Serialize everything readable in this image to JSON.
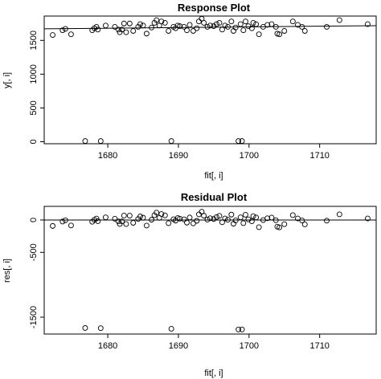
{
  "chart_data": [
    {
      "type": "scatter",
      "title": "Response Plot",
      "xlabel": "fit[, i]",
      "ylabel": "y[, i]",
      "xlim": [
        1671,
        1718
      ],
      "ylim": [
        -30,
        1860
      ],
      "xticks": [
        1680,
        1690,
        1700,
        1710
      ],
      "yticks": [
        0,
        500,
        1000,
        1500
      ],
      "grid": false,
      "reference_line": {
        "kind": "identity",
        "description": "y = x"
      },
      "points": [
        [
          1672.2,
          1580
        ],
        [
          1673.6,
          1650
        ],
        [
          1674.0,
          1670
        ],
        [
          1674.8,
          1590
        ],
        [
          1676.8,
          10
        ],
        [
          1677.8,
          1650
        ],
        [
          1678.1,
          1680
        ],
        [
          1678.4,
          1700
        ],
        [
          1678.6,
          1660
        ],
        [
          1679.0,
          10
        ],
        [
          1679.7,
          1720
        ],
        [
          1681.0,
          1700
        ],
        [
          1681.5,
          1660
        ],
        [
          1681.7,
          1620
        ],
        [
          1682.0,
          1660
        ],
        [
          1682.3,
          1750
        ],
        [
          1682.6,
          1620
        ],
        [
          1683.1,
          1750
        ],
        [
          1683.6,
          1640
        ],
        [
          1684.3,
          1700
        ],
        [
          1684.6,
          1740
        ],
        [
          1685.0,
          1720
        ],
        [
          1685.5,
          1600
        ],
        [
          1686.2,
          1690
        ],
        [
          1686.6,
          1760
        ],
        [
          1686.9,
          1800
        ],
        [
          1687.3,
          1720
        ],
        [
          1687.6,
          1780
        ],
        [
          1688.1,
          1760
        ],
        [
          1688.6,
          1640
        ],
        [
          1689.0,
          10
        ],
        [
          1689.3,
          1700
        ],
        [
          1689.6,
          1680
        ],
        [
          1689.9,
          1720
        ],
        [
          1690.2,
          1710
        ],
        [
          1690.8,
          1700
        ],
        [
          1691.2,
          1650
        ],
        [
          1691.6,
          1730
        ],
        [
          1692.1,
          1640
        ],
        [
          1692.6,
          1680
        ],
        [
          1692.9,
          1780
        ],
        [
          1693.3,
          1820
        ],
        [
          1693.6,
          1760
        ],
        [
          1694.1,
          1700
        ],
        [
          1694.5,
          1720
        ],
        [
          1695.0,
          1710
        ],
        [
          1695.4,
          1740
        ],
        [
          1695.8,
          1760
        ],
        [
          1696.2,
          1660
        ],
        [
          1696.6,
          1720
        ],
        [
          1697.0,
          1700
        ],
        [
          1697.5,
          1780
        ],
        [
          1697.8,
          1640
        ],
        [
          1698.1,
          1690
        ],
        [
          1698.5,
          10
        ],
        [
          1698.8,
          1740
        ],
        [
          1699.0,
          10
        ],
        [
          1699.2,
          1650
        ],
        [
          1699.5,
          1780
        ],
        [
          1699.9,
          1710
        ],
        [
          1700.4,
          1680
        ],
        [
          1700.6,
          1760
        ],
        [
          1701.0,
          1740
        ],
        [
          1701.4,
          1590
        ],
        [
          1702.0,
          1700
        ],
        [
          1702.6,
          1730
        ],
        [
          1703.2,
          1740
        ],
        [
          1703.8,
          1700
        ],
        [
          1704.0,
          1600
        ],
        [
          1704.3,
          1590
        ],
        [
          1705.0,
          1640
        ],
        [
          1706.2,
          1780
        ],
        [
          1706.9,
          1730
        ],
        [
          1707.5,
          1700
        ],
        [
          1707.9,
          1640
        ],
        [
          1711.0,
          1700
        ],
        [
          1712.8,
          1800
        ],
        [
          1716.8,
          1740
        ]
      ]
    },
    {
      "type": "scatter",
      "title": "Residual Plot",
      "xlabel": "fit[, i]",
      "ylabel": "res[, i]",
      "xlim": [
        1671,
        1718
      ],
      "ylim": [
        -1760,
        210
      ],
      "xticks": [
        1680,
        1690,
        1700,
        1710
      ],
      "yticks": [
        -1500,
        -500,
        0
      ],
      "grid": false,
      "reference_line": {
        "kind": "horizontal",
        "y": 0
      },
      "points": [
        [
          1672.2,
          -92
        ],
        [
          1673.6,
          -24
        ],
        [
          1674.0,
          -4
        ],
        [
          1674.8,
          -85
        ],
        [
          1676.8,
          -1667
        ],
        [
          1677.8,
          -28
        ],
        [
          1678.1,
          2
        ],
        [
          1678.4,
          22
        ],
        [
          1678.6,
          -19
        ],
        [
          1679.0,
          -1669
        ],
        [
          1679.7,
          40
        ],
        [
          1681.0,
          19
        ],
        [
          1681.5,
          -22
        ],
        [
          1681.7,
          -62
        ],
        [
          1682.0,
          -22
        ],
        [
          1682.3,
          68
        ],
        [
          1682.6,
          -63
        ],
        [
          1683.1,
          67
        ],
        [
          1683.6,
          -44
        ],
        [
          1684.3,
          16
        ],
        [
          1684.6,
          55
        ],
        [
          1685.0,
          35
        ],
        [
          1685.5,
          -86
        ],
        [
          1686.2,
          4
        ],
        [
          1686.6,
          73
        ],
        [
          1686.9,
          113
        ],
        [
          1687.3,
          33
        ],
        [
          1687.6,
          92
        ],
        [
          1688.1,
          72
        ],
        [
          1688.6,
          -49
        ],
        [
          1689.0,
          -1679
        ],
        [
          1689.3,
          11
        ],
        [
          1689.6,
          -10
        ],
        [
          1689.9,
          30
        ],
        [
          1690.2,
          20
        ],
        [
          1690.8,
          9
        ],
        [
          1691.2,
          -41
        ],
        [
          1691.6,
          38
        ],
        [
          1692.1,
          -52
        ],
        [
          1692.6,
          -13
        ],
        [
          1692.9,
          87
        ],
        [
          1693.3,
          127
        ],
        [
          1693.6,
          66
        ],
        [
          1694.1,
          6
        ],
        [
          1694.5,
          26
        ],
        [
          1695.0,
          15
        ],
        [
          1695.4,
          45
        ],
        [
          1695.8,
          64
        ],
        [
          1696.2,
          -36
        ],
        [
          1696.6,
          23
        ],
        [
          1697.0,
          3
        ],
        [
          1697.5,
          83
        ],
        [
          1697.8,
          -58
        ],
        [
          1698.1,
          -8
        ],
        [
          1698.5,
          -1689
        ],
        [
          1698.8,
          41
        ],
        [
          1699.0,
          -1689
        ],
        [
          1699.2,
          -49
        ],
        [
          1699.5,
          81
        ],
        [
          1699.9,
          10
        ],
        [
          1700.4,
          -20
        ],
        [
          1700.6,
          59
        ],
        [
          1701.0,
          39
        ],
        [
          1701.4,
          -111
        ],
        [
          1702.0,
          -2
        ],
        [
          1702.6,
          27
        ],
        [
          1703.2,
          37
        ],
        [
          1703.8,
          -4
        ],
        [
          1704.0,
          -104
        ],
        [
          1704.3,
          -114
        ],
        [
          1705.0,
          -65
        ],
        [
          1706.2,
          74
        ],
        [
          1706.9,
          23
        ],
        [
          1707.5,
          -8
        ],
        [
          1707.9,
          -68
        ],
        [
          1711.0,
          -11
        ],
        [
          1712.8,
          87
        ],
        [
          1716.8,
          23
        ]
      ]
    }
  ]
}
